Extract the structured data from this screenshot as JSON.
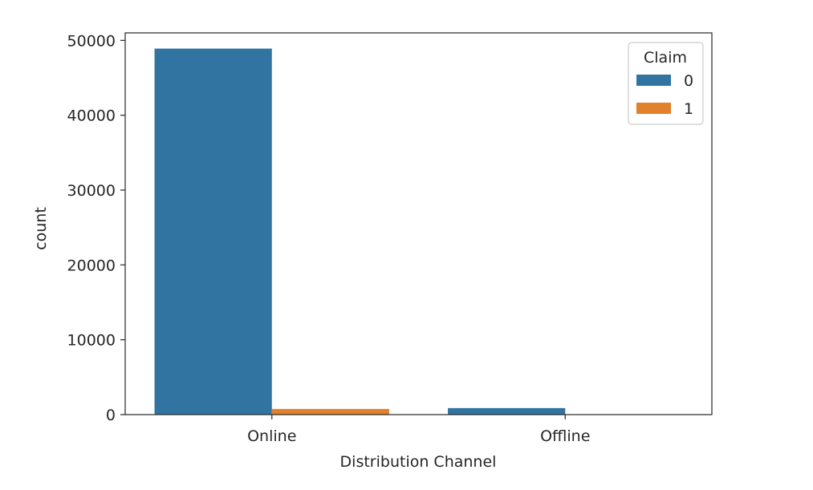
{
  "chart_data": {
    "type": "bar",
    "title": "",
    "xlabel": "Distribution Channel",
    "ylabel": "count",
    "categories": [
      "Online",
      "Offline"
    ],
    "series": [
      {
        "name": "0",
        "values": [
          48900,
          870
        ],
        "color": "#3274a1"
      },
      {
        "name": "1",
        "values": [
          760,
          20
        ],
        "color": "#e1812c"
      }
    ],
    "ylim": [
      0,
      51000
    ],
    "yticks": [
      0,
      10000,
      20000,
      30000,
      40000,
      50000
    ],
    "ytick_labels": [
      "0",
      "10000",
      "20000",
      "30000",
      "40000",
      "50000"
    ],
    "legend": {
      "title": "Claim",
      "placement": "top-right"
    },
    "grid": false
  }
}
